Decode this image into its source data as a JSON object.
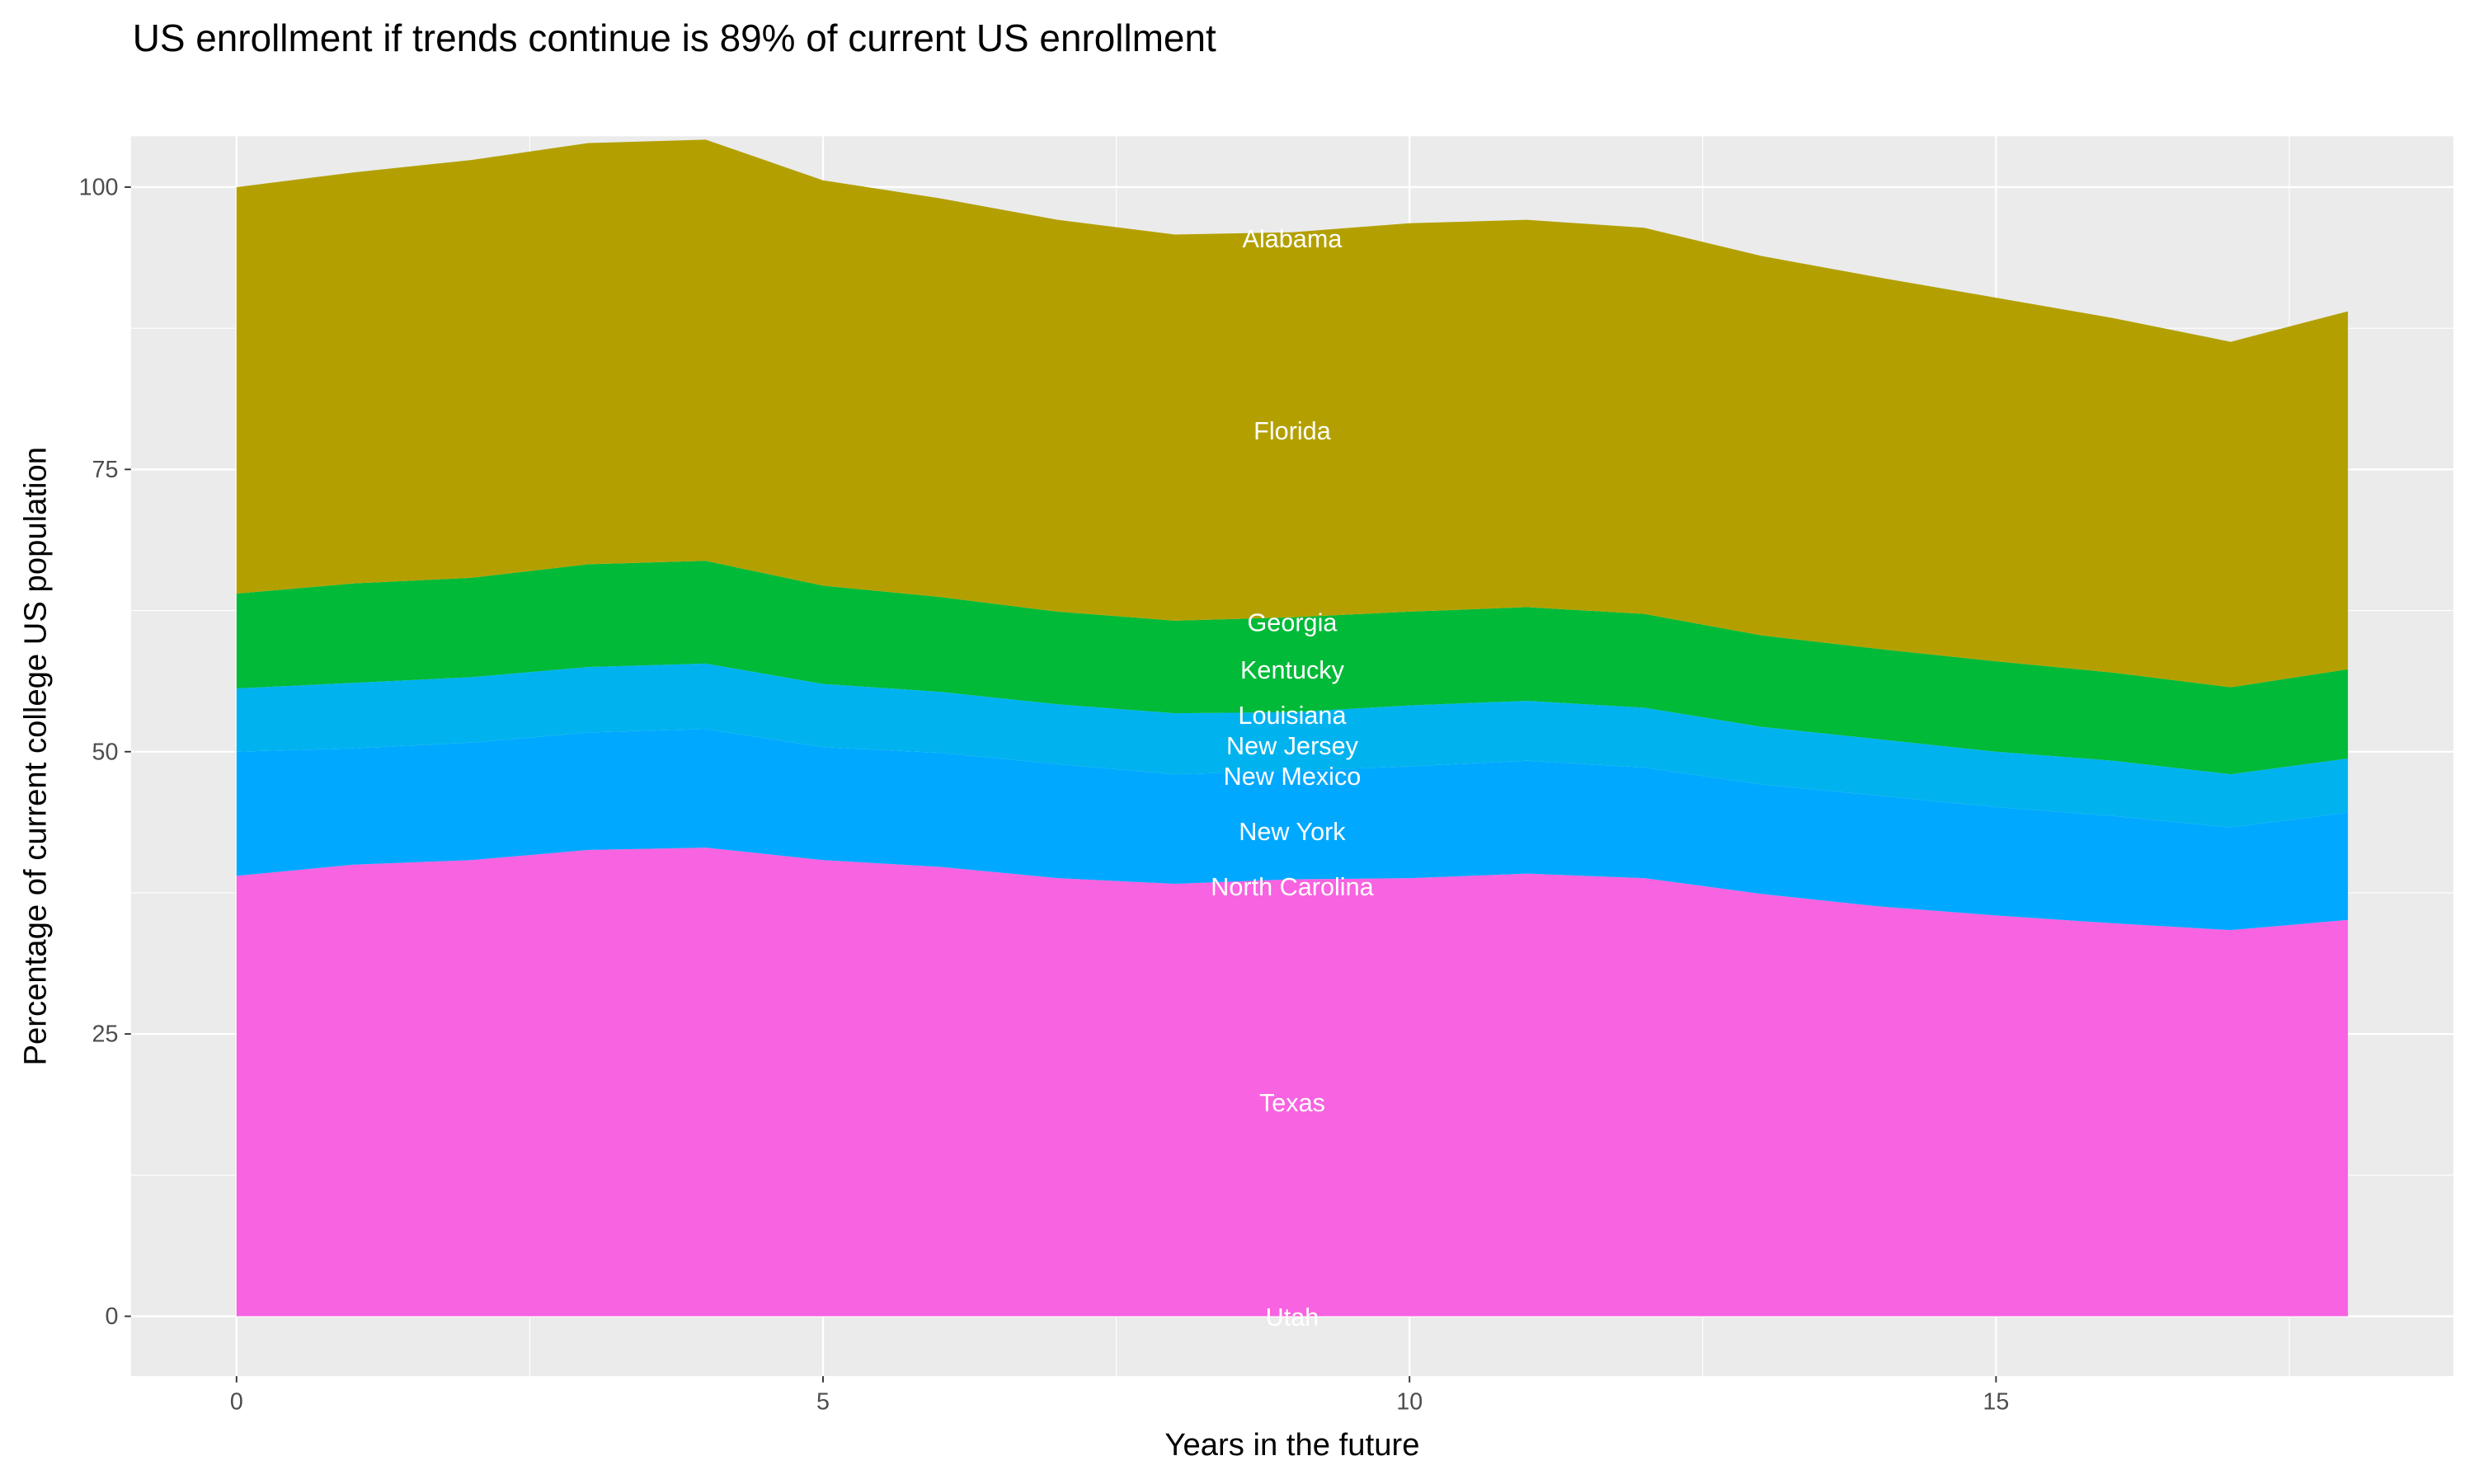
{
  "chart_data": {
    "type": "area",
    "stacked": true,
    "title": "US enrollment if trends continue is 89% of current US enrollment",
    "xlabel": "Years in the future",
    "ylabel": "Percentage of current college US population",
    "xlim": [
      -0.9,
      18.9
    ],
    "ylim": [
      -5.3,
      104.5
    ],
    "x_ticks": [
      0,
      5,
      10,
      15
    ],
    "y_ticks": [
      0,
      25,
      50,
      75,
      100
    ],
    "grid": true,
    "legend": "none",
    "x": [
      0,
      1,
      2,
      3,
      4,
      5,
      6,
      7,
      8,
      9,
      10,
      11,
      12,
      13,
      14,
      15,
      16,
      17,
      18
    ],
    "band_tops": [
      {
        "color": "#F763E0",
        "values": [
          39.0,
          40.0,
          40.4,
          41.3,
          41.5,
          40.4,
          39.8,
          38.8,
          38.3,
          38.7,
          38.8,
          39.2,
          38.8,
          37.4,
          36.3,
          35.5,
          34.8,
          34.2,
          35.1
        ]
      },
      {
        "color": "#00A9FF",
        "values": [
          50.0,
          50.3,
          50.8,
          51.7,
          52.0,
          50.4,
          49.9,
          48.9,
          48.0,
          48.3,
          48.7,
          49.2,
          48.6,
          47.1,
          46.1,
          45.1,
          44.3,
          43.3,
          44.6
        ]
      },
      {
        "color": "#00B3EF",
        "values": [
          55.6,
          56.1,
          56.6,
          57.5,
          57.8,
          56.0,
          55.3,
          54.2,
          53.4,
          53.5,
          54.1,
          54.5,
          53.9,
          52.2,
          51.1,
          50.0,
          49.2,
          48.0,
          49.4
        ]
      },
      {
        "color": "#00BA38",
        "values": [
          64.0,
          64.9,
          65.4,
          66.6,
          66.9,
          64.7,
          63.7,
          62.4,
          61.6,
          61.9,
          62.4,
          62.8,
          62.2,
          60.3,
          59.1,
          58.0,
          57.0,
          55.7,
          57.3
        ]
      },
      {
        "color": "#B3A000",
        "values": [
          100.0,
          101.3,
          102.4,
          103.9,
          104.2,
          100.6,
          99.0,
          97.1,
          95.8,
          96.0,
          96.8,
          97.1,
          96.4,
          93.9,
          92.0,
          90.2,
          88.4,
          86.3,
          89.0
        ]
      }
    ],
    "annotations_x": 9,
    "annotations": [
      {
        "label": "Alabama",
        "y": 95.5
      },
      {
        "label": "Florida",
        "y": 78.5
      },
      {
        "label": "Georgia",
        "y": 61.5
      },
      {
        "label": "Kentucky",
        "y": 57.3
      },
      {
        "label": "Louisiana",
        "y": 53.3
      },
      {
        "label": "New Jersey",
        "y": 50.6
      },
      {
        "label": "New Mexico",
        "y": 47.9
      },
      {
        "label": "New York",
        "y": 43.0
      },
      {
        "label": "North Carolina",
        "y": 38.1
      },
      {
        "label": "Texas",
        "y": 19.0
      },
      {
        "label": "Utah",
        "y": 0
      }
    ]
  }
}
